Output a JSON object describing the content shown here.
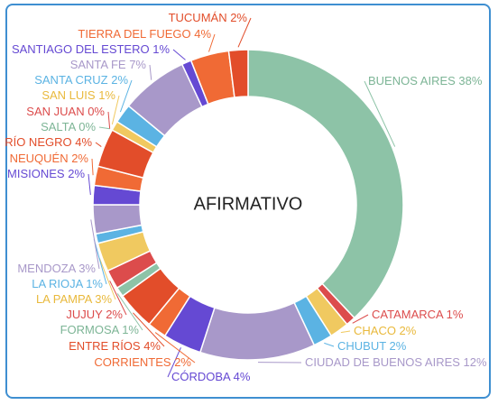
{
  "chart_data": {
    "type": "pie",
    "donut": true,
    "center_label": "AFIRMATIVO",
    "slices": [
      {
        "label": "BUENOS AIRES",
        "value": 38,
        "pct_label": "38%",
        "color": "#8dc3a7"
      },
      {
        "label": "CATAMARCA",
        "value": 1,
        "pct_label": "1%",
        "color": "#dc4c4c"
      },
      {
        "label": "CHACO",
        "value": 2,
        "pct_label": "2%",
        "color": "#f0c960"
      },
      {
        "label": "CHUBUT",
        "value": 2,
        "pct_label": "2%",
        "color": "#5bb3e3"
      },
      {
        "label": "CIUDAD DE BUENOS AIRES",
        "value": 12,
        "pct_label": "12%",
        "color": "#a898c9"
      },
      {
        "label": "CÓRDOBA",
        "value": 4,
        "pct_label": "4%",
        "color": "#6549d3"
      },
      {
        "label": "CORRIENTES",
        "value": 2,
        "pct_label": "2%",
        "color": "#f06a35"
      },
      {
        "label": "ENTRE RÍOS",
        "value": 4,
        "pct_label": "4%",
        "color": "#e24d2a"
      },
      {
        "label": "FORMOSA",
        "value": 1,
        "pct_label": "1%",
        "color": "#8dc3a7"
      },
      {
        "label": "JUJUY",
        "value": 2,
        "pct_label": "2%",
        "color": "#dc4c4c"
      },
      {
        "label": "LA PAMPA",
        "value": 3,
        "pct_label": "3%",
        "color": "#f0c960"
      },
      {
        "label": "LA RIOJA",
        "value": 1,
        "pct_label": "1%",
        "color": "#5bb3e3"
      },
      {
        "label": "MENDOZA",
        "value": 3,
        "pct_label": "3%",
        "color": "#a898c9"
      },
      {
        "label": "MISIONES",
        "value": 2,
        "pct_label": "2%",
        "color": "#6549d3"
      },
      {
        "label": "NEUQUÉN",
        "value": 2,
        "pct_label": "2%",
        "color": "#f06a35"
      },
      {
        "label": "RÍO NEGRO",
        "value": 4,
        "pct_label": "4%",
        "color": "#e24d2a"
      },
      {
        "label": "SALTA",
        "value": 0,
        "pct_label": "0%",
        "color": "#8dc3a7"
      },
      {
        "label": "SAN JUAN",
        "value": 0,
        "pct_label": "0%",
        "color": "#dc4c4c"
      },
      {
        "label": "SAN LUIS",
        "value": 1,
        "pct_label": "1%",
        "color": "#f0c960"
      },
      {
        "label": "SANTA CRUZ",
        "value": 2,
        "pct_label": "2%",
        "color": "#5bb3e3"
      },
      {
        "label": "SANTA FE",
        "value": 7,
        "pct_label": "7%",
        "color": "#a898c9"
      },
      {
        "label": "SANTIAGO DEL ESTERO",
        "value": 1,
        "pct_label": "1%",
        "color": "#6549d3"
      },
      {
        "label": "TIERRA DEL FUEGO",
        "value": 4,
        "pct_label": "4%",
        "color": "#f06a35"
      },
      {
        "label": "TUCUMÁN",
        "value": 2,
        "pct_label": "2%",
        "color": "#e24d2a"
      }
    ]
  }
}
